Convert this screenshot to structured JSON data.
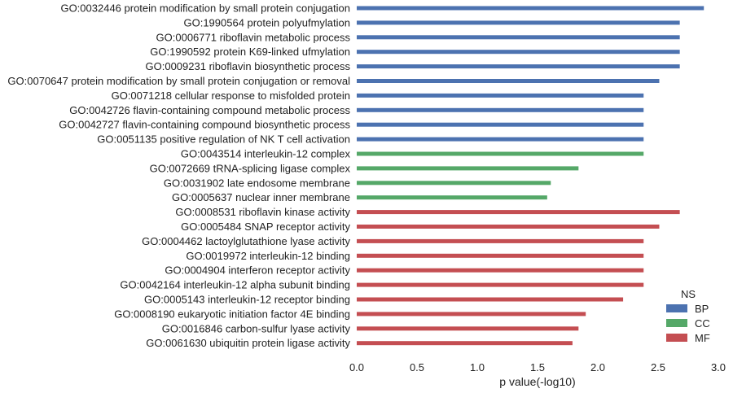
{
  "chart_data": {
    "type": "bar",
    "orientation": "horizontal",
    "title": "",
    "xlabel": "p value(-log10)",
    "ylabel": "",
    "xlim": [
      0,
      3.0
    ],
    "xticks": [
      "0.0",
      "0.5",
      "1.0",
      "1.5",
      "2.0",
      "2.5",
      "3.0"
    ],
    "grid": false,
    "legend": {
      "title": "NS",
      "placement": "bottom-right",
      "entries": [
        {
          "name": "BP",
          "color": "#4C72B0"
        },
        {
          "name": "CC",
          "color": "#55A868"
        },
        {
          "name": "MF",
          "color": "#C44E52"
        }
      ]
    },
    "bars": [
      {
        "label": "GO:0032446 protein modification by small protein conjugation",
        "value": 2.88,
        "ns": "BP"
      },
      {
        "label": "GO:1990564 protein polyufmylation",
        "value": 2.68,
        "ns": "BP"
      },
      {
        "label": "GO:0006771 riboflavin metabolic process",
        "value": 2.68,
        "ns": "BP"
      },
      {
        "label": "GO:1990592 protein K69-linked ufmylation",
        "value": 2.68,
        "ns": "BP"
      },
      {
        "label": "GO:0009231 riboflavin biosynthetic process",
        "value": 2.68,
        "ns": "BP"
      },
      {
        "label": "GO:0070647 protein modification by small protein conjugation or removal",
        "value": 2.51,
        "ns": "BP"
      },
      {
        "label": "GO:0071218 cellular response to misfolded protein",
        "value": 2.38,
        "ns": "BP"
      },
      {
        "label": "GO:0042726 flavin-containing compound metabolic process",
        "value": 2.38,
        "ns": "BP"
      },
      {
        "label": "GO:0042727 flavin-containing compound biosynthetic process",
        "value": 2.38,
        "ns": "BP"
      },
      {
        "label": "GO:0051135 positive regulation of NK T cell activation",
        "value": 2.38,
        "ns": "BP"
      },
      {
        "label": "GO:0043514 interleukin-12 complex",
        "value": 2.38,
        "ns": "CC"
      },
      {
        "label": "GO:0072669 tRNA-splicing ligase complex",
        "value": 1.84,
        "ns": "CC"
      },
      {
        "label": "GO:0031902 late endosome membrane",
        "value": 1.61,
        "ns": "CC"
      },
      {
        "label": "GO:0005637 nuclear inner membrane",
        "value": 1.58,
        "ns": "CC"
      },
      {
        "label": "GO:0008531 riboflavin kinase activity",
        "value": 2.68,
        "ns": "MF"
      },
      {
        "label": "GO:0005484 SNAP receptor activity",
        "value": 2.51,
        "ns": "MF"
      },
      {
        "label": "GO:0004462 lactoylglutathione lyase activity",
        "value": 2.38,
        "ns": "MF"
      },
      {
        "label": "GO:0019972 interleukin-12 binding",
        "value": 2.38,
        "ns": "MF"
      },
      {
        "label": "GO:0004904 interferon receptor activity",
        "value": 2.38,
        "ns": "MF"
      },
      {
        "label": "GO:0042164 interleukin-12 alpha subunit binding",
        "value": 2.38,
        "ns": "MF"
      },
      {
        "label": "GO:0005143 interleukin-12 receptor binding",
        "value": 2.21,
        "ns": "MF"
      },
      {
        "label": "GO:0008190 eukaryotic initiation factor 4E binding",
        "value": 1.9,
        "ns": "MF"
      },
      {
        "label": "GO:0016846 carbon-sulfur lyase activity",
        "value": 1.84,
        "ns": "MF"
      },
      {
        "label": "GO:0061630 ubiquitin protein ligase activity",
        "value": 1.79,
        "ns": "MF"
      }
    ]
  }
}
